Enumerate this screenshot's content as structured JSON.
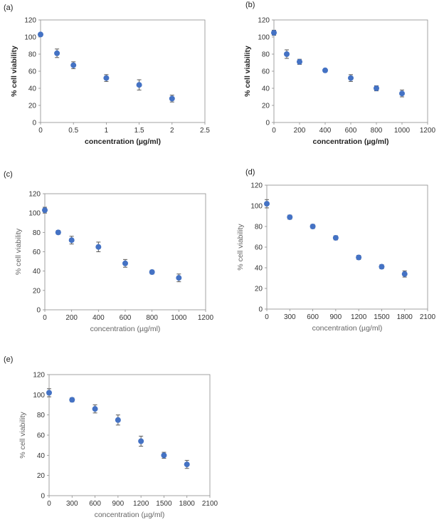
{
  "figure": {
    "colors": {
      "marker": "#4472C4",
      "error_bar": "#595959",
      "frame": "#8C8C8C",
      "background": "#FFFFFF"
    }
  },
  "chart_data": [
    {
      "id": "a",
      "panel_label": "(a)",
      "type": "scatter",
      "xlabel": "concentration (µg/ml)",
      "ylabel": "% cell viability",
      "xlim": [
        0,
        2.5
      ],
      "ylim": [
        0,
        120
      ],
      "xticks": [
        "0",
        "0.5",
        "1",
        "1.5",
        "2",
        "2.5"
      ],
      "yticks": [
        "0",
        "20",
        "40",
        "60",
        "80",
        "100",
        "120"
      ],
      "grid": false,
      "label_style": "dark",
      "points": [
        {
          "x": 0,
          "y": 103,
          "err": 2
        },
        {
          "x": 0.25,
          "y": 81,
          "err": 5
        },
        {
          "x": 0.5,
          "y": 67,
          "err": 4
        },
        {
          "x": 1,
          "y": 52,
          "err": 4
        },
        {
          "x": 1.5,
          "y": 44,
          "err": 6
        },
        {
          "x": 2,
          "y": 28,
          "err": 4
        }
      ]
    },
    {
      "id": "b",
      "panel_label": "(b)",
      "type": "scatter",
      "xlabel": "concentration (µg/ml)",
      "ylabel": "% cell viability",
      "xlim": [
        0,
        1200
      ],
      "ylim": [
        0,
        120
      ],
      "xticks": [
        "0",
        "200",
        "400",
        "600",
        "800",
        "1000",
        "1200"
      ],
      "yticks": [
        "0",
        "20",
        "40",
        "60",
        "80",
        "100",
        "120"
      ],
      "grid": false,
      "label_style": "dark",
      "points": [
        {
          "x": 0,
          "y": 105,
          "err": 3
        },
        {
          "x": 100,
          "y": 80,
          "err": 5
        },
        {
          "x": 200,
          "y": 71,
          "err": 3
        },
        {
          "x": 400,
          "y": 61,
          "err": 2
        },
        {
          "x": 600,
          "y": 52,
          "err": 4
        },
        {
          "x": 800,
          "y": 40,
          "err": 3
        },
        {
          "x": 1000,
          "y": 34,
          "err": 4
        }
      ]
    },
    {
      "id": "c",
      "panel_label": "(c)",
      "type": "scatter",
      "xlabel": "concentration (µg/ml)",
      "ylabel": "% cell viability",
      "xlim": [
        0,
        1200
      ],
      "ylim": [
        0,
        120
      ],
      "xticks": [
        "0",
        "200",
        "400",
        "600",
        "800",
        "1000",
        "1200"
      ],
      "yticks": [
        "0",
        "20",
        "40",
        "60",
        "80",
        "100",
        "120"
      ],
      "grid": false,
      "label_style": "gray",
      "points": [
        {
          "x": 0,
          "y": 103,
          "err": 3
        },
        {
          "x": 100,
          "y": 80,
          "err": 2
        },
        {
          "x": 200,
          "y": 72,
          "err": 4
        },
        {
          "x": 400,
          "y": 65,
          "err": 5
        },
        {
          "x": 600,
          "y": 48,
          "err": 4
        },
        {
          "x": 800,
          "y": 39,
          "err": 2
        },
        {
          "x": 1000,
          "y": 33,
          "err": 4
        }
      ]
    },
    {
      "id": "d",
      "panel_label": "(d)",
      "type": "scatter",
      "xlabel": "concentration (µg/ml)",
      "ylabel": "% cell viability",
      "xlim": [
        0,
        2100
      ],
      "ylim": [
        0,
        120
      ],
      "xticks": [
        "0",
        "300",
        "600",
        "900",
        "1200",
        "1500",
        "1800",
        "2100"
      ],
      "yticks": [
        "0",
        "20",
        "40",
        "60",
        "80",
        "100",
        "120"
      ],
      "grid": false,
      "label_style": "gray",
      "points": [
        {
          "x": 0,
          "y": 102,
          "err": 4
        },
        {
          "x": 300,
          "y": 89,
          "err": 2
        },
        {
          "x": 600,
          "y": 80,
          "err": 2
        },
        {
          "x": 900,
          "y": 69,
          "err": 2
        },
        {
          "x": 1200,
          "y": 50,
          "err": 2
        },
        {
          "x": 1500,
          "y": 41,
          "err": 2
        },
        {
          "x": 1800,
          "y": 34,
          "err": 3
        }
      ]
    },
    {
      "id": "e",
      "panel_label": "(e)",
      "type": "scatter",
      "xlabel": "concentration (µg/ml)",
      "ylabel": "% cell viability",
      "xlim": [
        0,
        2100
      ],
      "ylim": [
        0,
        120
      ],
      "xticks": [
        "0",
        "300",
        "600",
        "900",
        "1200",
        "1500",
        "1800",
        "2100"
      ],
      "yticks": [
        "0",
        "20",
        "40",
        "60",
        "80",
        "100",
        "120"
      ],
      "grid": false,
      "label_style": "gray",
      "points": [
        {
          "x": 0,
          "y": 102,
          "err": 4
        },
        {
          "x": 300,
          "y": 95,
          "err": 2
        },
        {
          "x": 600,
          "y": 86,
          "err": 4
        },
        {
          "x": 900,
          "y": 75,
          "err": 5
        },
        {
          "x": 1200,
          "y": 54,
          "err": 5
        },
        {
          "x": 1500,
          "y": 40,
          "err": 3
        },
        {
          "x": 1800,
          "y": 31,
          "err": 4
        }
      ]
    }
  ]
}
